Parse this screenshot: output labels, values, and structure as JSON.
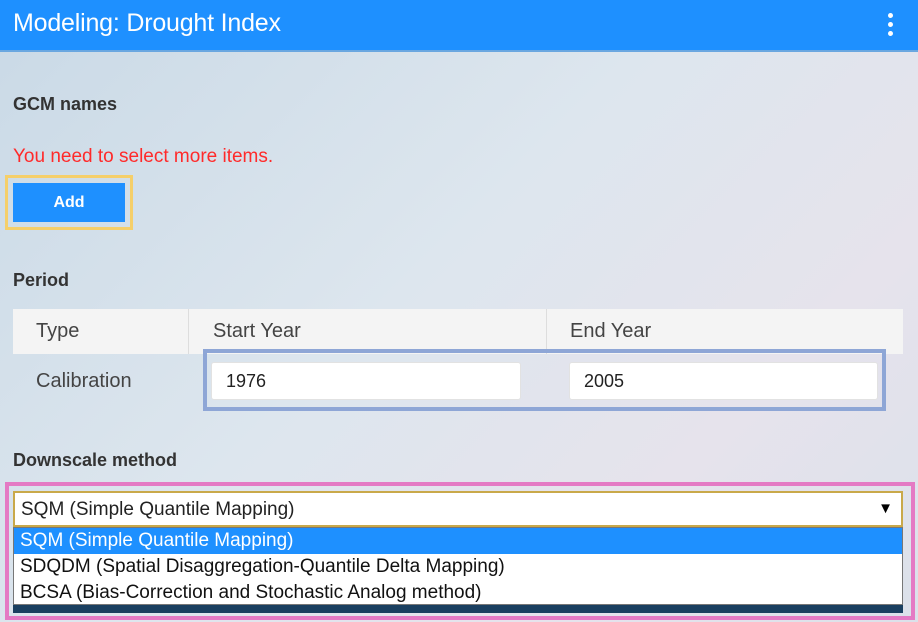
{
  "header": {
    "title": "Modeling: Drought Index",
    "menu_icon": "kebab-menu-icon"
  },
  "gcm": {
    "label": "GCM names",
    "error": "You need to select more items.",
    "add_label": "Add"
  },
  "period": {
    "label": "Period",
    "columns": [
      "Type",
      "Start Year",
      "End Year"
    ],
    "rows": [
      {
        "type": "Calibration",
        "start_year": "1976",
        "end_year": "2005"
      }
    ]
  },
  "downscale": {
    "label": "Downscale method",
    "selected": "SQM (Simple Quantile Mapping)",
    "options": [
      "SQM (Simple Quantile Mapping)",
      "SDQDM (Spatial Disaggregation-Quantile Delta Mapping)",
      "BCSA (Bias-Correction and Stochastic Analog method)"
    ],
    "arrow_icon": "dropdown-arrow-icon"
  },
  "colors": {
    "accent": "#1e90ff",
    "error": "#ff2a2a",
    "highlight_yellow": "#f5cf6a",
    "highlight_blue": "#8ea6d6",
    "highlight_pink": "#e47ac4"
  }
}
